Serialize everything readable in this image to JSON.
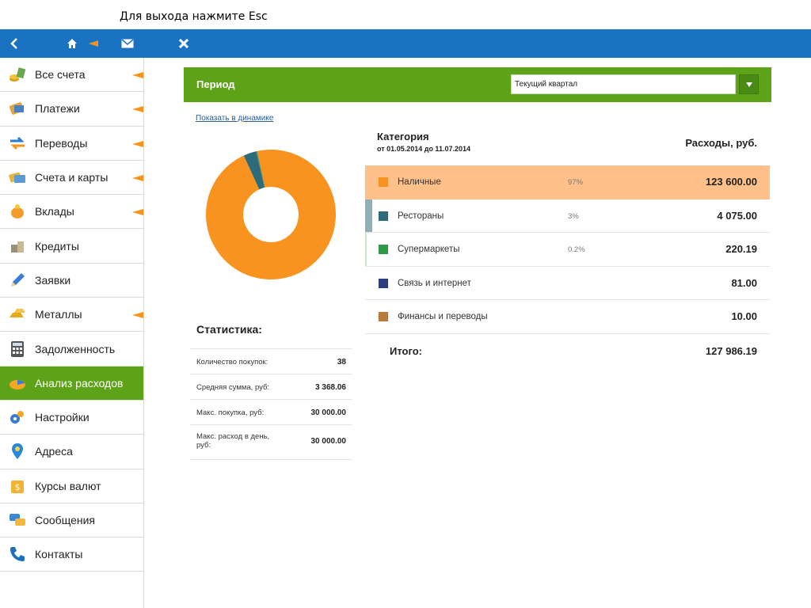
{
  "hint": "Для выхода нажмите Esc",
  "colors": {
    "topbar": "#1a73c2",
    "accent_green": "#5ea21a",
    "arrow_orange": "#f7941d",
    "highlight": "#ffc08a"
  },
  "topbar": {
    "icons": [
      "back-icon",
      "home-icon",
      "mail-icon",
      "close-icon"
    ]
  },
  "sidebar": {
    "items": [
      {
        "label": "Все счета",
        "icon": "coins-icon",
        "arrow": true,
        "active": false
      },
      {
        "label": "Платежи",
        "icon": "payments-icon",
        "arrow": true,
        "active": false
      },
      {
        "label": "Переводы",
        "icon": "transfer-arrows-icon",
        "arrow": true,
        "active": false
      },
      {
        "label": "Счета и карты",
        "icon": "cards-icon",
        "arrow": true,
        "active": false
      },
      {
        "label": "Вклады",
        "icon": "piggy-bank-icon",
        "arrow": true,
        "active": false
      },
      {
        "label": "Кредиты",
        "icon": "credit-coins-icon",
        "arrow": false,
        "active": false
      },
      {
        "label": "Заявки",
        "icon": "pencil-icon",
        "arrow": false,
        "active": false
      },
      {
        "label": "Металлы",
        "icon": "gold-bars-icon",
        "arrow": true,
        "active": false
      },
      {
        "label": "Задолженность",
        "icon": "calculator-icon",
        "arrow": false,
        "active": false
      },
      {
        "label": "Анализ расходов",
        "icon": "pie-chart-icon",
        "arrow": false,
        "active": true
      },
      {
        "label": "Настройки",
        "icon": "gears-icon",
        "arrow": false,
        "active": false
      },
      {
        "label": "Адреса",
        "icon": "map-pin-icon",
        "arrow": false,
        "active": false
      },
      {
        "label": "Курсы валют",
        "icon": "currency-box-icon",
        "arrow": false,
        "active": false
      },
      {
        "label": "Сообщения",
        "icon": "chat-bubbles-icon",
        "arrow": false,
        "active": false
      },
      {
        "label": "Контакты",
        "icon": "phone-icon",
        "arrow": false,
        "active": false
      }
    ]
  },
  "period": {
    "title": "Период",
    "selected": "Текущий квартал"
  },
  "dynamics_link": "Показать в динамике",
  "category_header": {
    "title": "Категория",
    "range": "от 01.05.2014 до 11.07.2014",
    "amount_title": "Расходы, руб."
  },
  "categories": [
    {
      "name": "Наличные",
      "percent": "97%",
      "amount": "123 600.00",
      "color": "#f7931e",
      "highlighted": true
    },
    {
      "name": "Рестораны",
      "percent": "3%",
      "amount": "4 075.00",
      "color": "#2e6b7a",
      "highlighted": false
    },
    {
      "name": "Супермаркеты",
      "percent": "0.2%",
      "amount": "220.19",
      "color": "#2e9a48",
      "highlighted": false
    },
    {
      "name": "Связь и интернет",
      "percent": "",
      "amount": "81.00",
      "color": "#2b3f80",
      "highlighted": false
    },
    {
      "name": "Финансы и переводы",
      "percent": "",
      "amount": "10.00",
      "color": "#b8793a",
      "highlighted": false
    }
  ],
  "total": {
    "label": "Итого:",
    "value": "127 986.19"
  },
  "stats": {
    "title": "Статистика:",
    "rows": [
      {
        "label": "Количество покупок:",
        "value": "38"
      },
      {
        "label": "Средняя сумма, руб:",
        "value": "3 368.06"
      },
      {
        "label": "Макс. покупка, руб:",
        "value": "30 000.00"
      },
      {
        "label": "Макс. расход в день, руб:",
        "value": "30 000.00"
      }
    ]
  },
  "chart_data": {
    "type": "pie",
    "categories": [
      "Наличные",
      "Рестораны",
      "Супермаркеты",
      "Связь и интернет",
      "Финансы и переводы"
    ],
    "values": [
      123600.0,
      4075.0,
      220.19,
      81.0,
      10.0
    ],
    "colors": [
      "#f7931e",
      "#2e6b7a",
      "#2e9a48",
      "#2b3f80",
      "#b8793a"
    ],
    "donut": true
  }
}
